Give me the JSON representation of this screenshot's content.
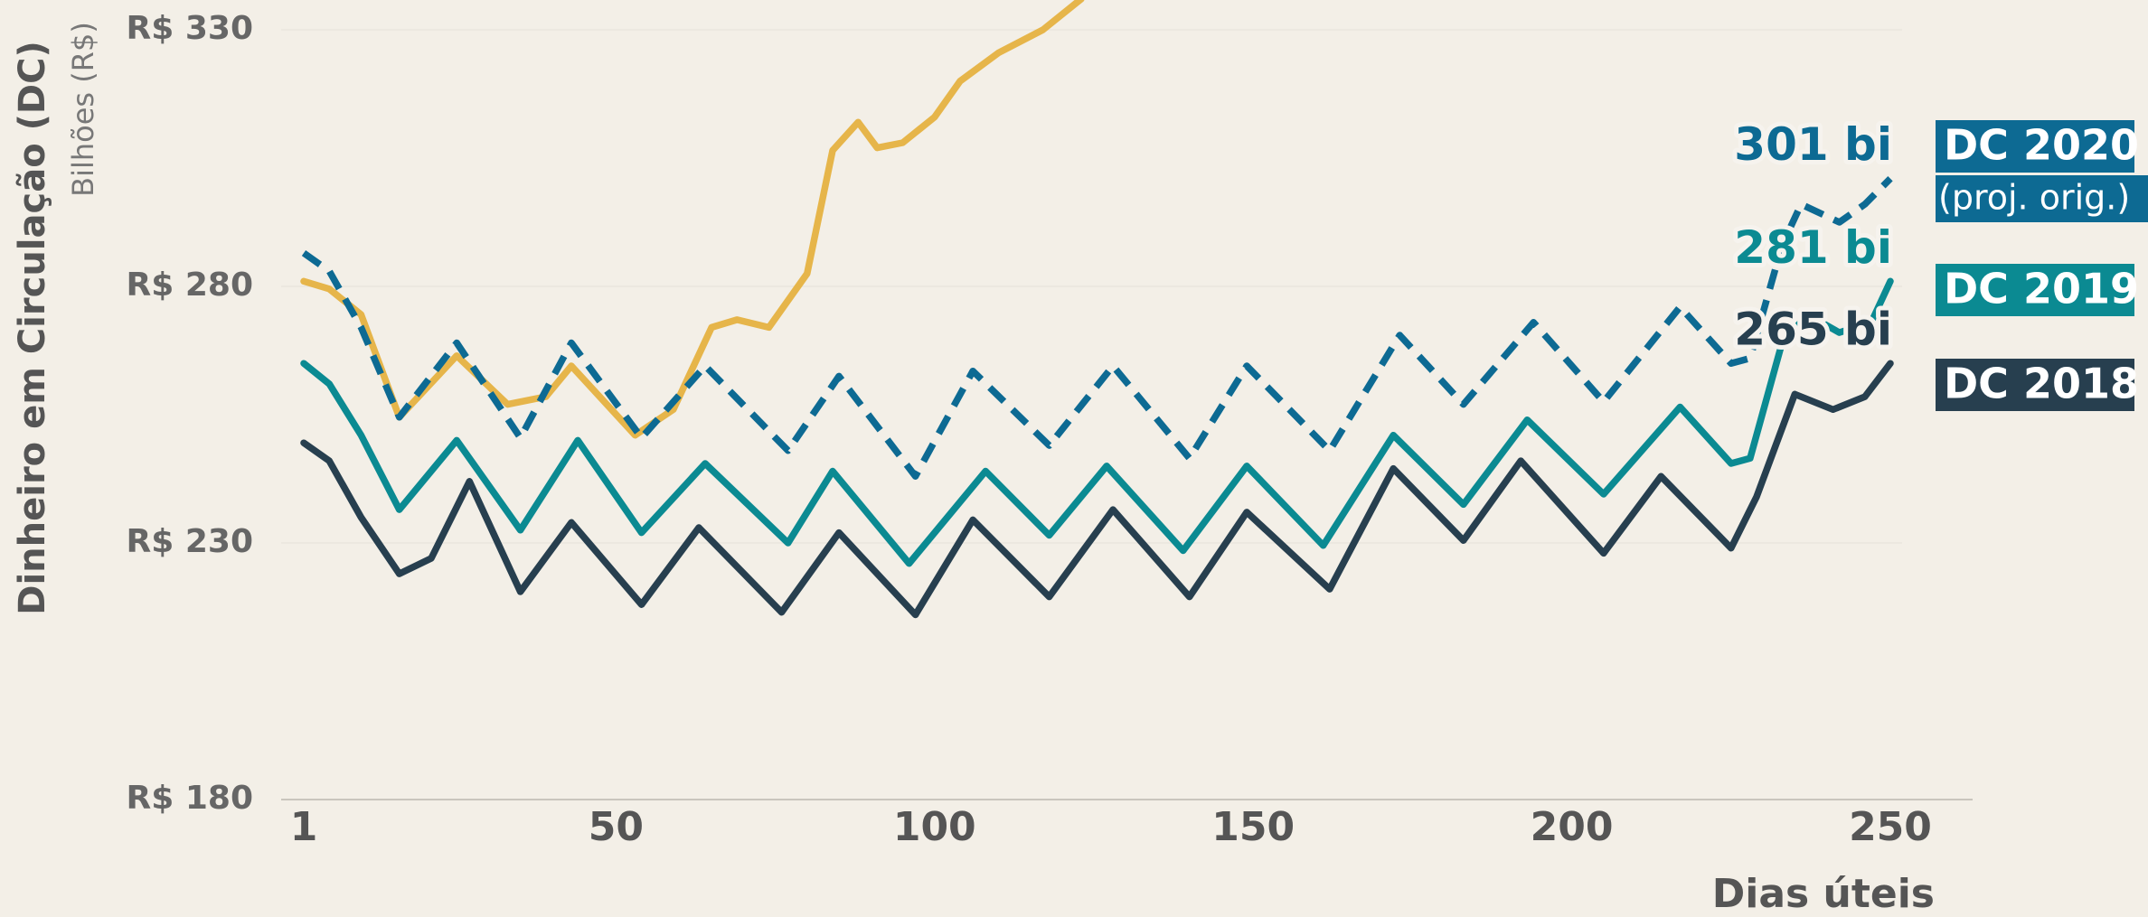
{
  "chart_data": {
    "type": "line",
    "y_label": "Dinheiro em Circulação (DC)",
    "y_sublabel": "Bilhões (R$)",
    "x_label": "Dias úteis",
    "xlim": [
      1,
      250
    ],
    "xticks": [
      1,
      50,
      100,
      150,
      200,
      250
    ],
    "ylim": [
      180,
      330
    ],
    "yticks": [
      {
        "value": 180,
        "label": "R$ 180"
      },
      {
        "value": 230,
        "label": "R$ 230"
      },
      {
        "value": 280,
        "label": "R$ 280"
      },
      {
        "value": 330,
        "label": "R$ 330"
      }
    ],
    "grid": true,
    "series": [
      {
        "color": "#e6b54a",
        "dash": false,
        "x": [
          1,
          5,
          10,
          16,
          25,
          33,
          39,
          43,
          53,
          59,
          65,
          69,
          74,
          80,
          84,
          88,
          91,
          95,
          100,
          104,
          110,
          117,
          123
        ],
        "values": [
          281,
          279.5,
          274.5,
          254.5,
          266.5,
          257,
          258.5,
          264.5,
          251,
          256,
          272,
          273.5,
          272,
          282.5,
          306.5,
          312,
          307,
          308,
          313,
          320,
          325.5,
          330,
          336
        ]
      },
      {
        "name": "DC 2018",
        "color": "#273f4f",
        "dash": false,
        "x": [
          1,
          5,
          10,
          16,
          21,
          27,
          35,
          43,
          54,
          63,
          76,
          85,
          97,
          106,
          118,
          128,
          140,
          149,
          162,
          172,
          183,
          192,
          205,
          214,
          225,
          229,
          235,
          241,
          246,
          250
        ],
        "values": [
          249.5,
          246,
          235,
          224,
          227,
          242,
          220.5,
          234,
          218,
          233,
          216.5,
          232,
          216,
          234.5,
          219.5,
          236.5,
          219.5,
          236,
          221,
          244.5,
          230.5,
          246,
          228,
          243,
          229,
          239,
          259,
          256,
          258.5,
          265
        ],
        "value_labels": [
          null,
          null,
          null,
          null,
          null,
          null,
          null,
          null,
          null,
          null,
          null,
          null,
          null,
          null,
          null,
          null,
          null,
          null,
          null,
          null,
          null,
          null,
          null,
          null,
          null,
          null,
          null,
          null,
          null,
          "265 bi"
        ]
      },
      {
        "name": "DC 2019",
        "color": "#0b8a92",
        "dash": false,
        "x": [
          1,
          5,
          10,
          16,
          25,
          35,
          44,
          54,
          64,
          77,
          84,
          96,
          108,
          118,
          127,
          139,
          149,
          161,
          172,
          183,
          193,
          205,
          217,
          225,
          228,
          233,
          237,
          242,
          247,
          250
        ],
        "values": [
          265,
          261,
          251,
          236.5,
          250,
          232.5,
          250,
          232,
          245.5,
          230,
          244,
          226,
          244,
          231.5,
          245,
          228.5,
          245,
          229.5,
          251,
          237.5,
          254,
          239.5,
          256.5,
          245.5,
          246.5,
          269,
          274.5,
          271,
          273,
          281
        ],
        "value_labels": [
          null,
          null,
          null,
          null,
          null,
          null,
          null,
          null,
          null,
          null,
          null,
          null,
          null,
          null,
          null,
          null,
          null,
          null,
          null,
          null,
          null,
          null,
          null,
          null,
          null,
          null,
          null,
          null,
          null,
          "281 bi"
        ]
      },
      {
        "name": "DC 2020",
        "note": "(proj. orig.)",
        "color": "#0d6a93",
        "dash": true,
        "x": [
          1,
          5,
          10,
          16,
          25,
          35,
          43,
          54,
          64,
          77,
          85,
          97,
          106,
          118,
          128,
          140,
          149,
          162,
          173,
          183,
          194,
          205,
          217,
          225,
          228,
          233,
          236,
          242,
          246,
          250
        ],
        "values": [
          286.5,
          283,
          272,
          254.5,
          269,
          250.5,
          269,
          250.5,
          264.5,
          248,
          262.5,
          243,
          263.5,
          249,
          264.5,
          246.5,
          264.5,
          248,
          270.5,
          257,
          273,
          257.5,
          276,
          265,
          266,
          288,
          296,
          292.5,
          296,
          301
        ],
        "value_labels": [
          null,
          null,
          null,
          null,
          null,
          null,
          null,
          null,
          null,
          null,
          null,
          null,
          null,
          null,
          null,
          null,
          null,
          null,
          null,
          null,
          null,
          null,
          null,
          null,
          null,
          null,
          null,
          null,
          null,
          "301 bi"
        ]
      }
    ]
  }
}
